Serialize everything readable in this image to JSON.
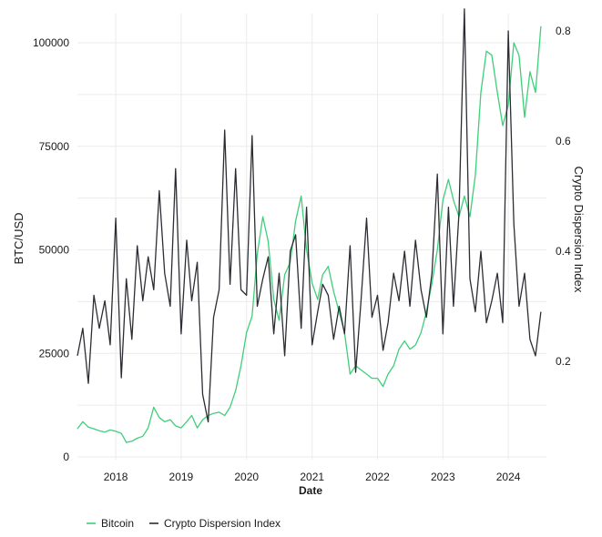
{
  "chart_data": {
    "type": "line",
    "title": "",
    "xlabel": "Date",
    "ylabel_left": "BTC/USD",
    "ylabel_right": "Crypto Dispersion Index",
    "x_ticks": [
      "2018",
      "2019",
      "2020",
      "2021",
      "2022",
      "2023",
      "2024"
    ],
    "x_range": [
      "2017-06-01",
      "2024-08-01"
    ],
    "y_left_ticks": [
      "0",
      "25000",
      "50000",
      "75000",
      "100000"
    ],
    "y_left_range": [
      0,
      100000
    ],
    "y_right_ticks": [
      "0.2",
      "0.4",
      "0.6",
      "0.8"
    ],
    "y_right_range": [
      0.2,
      0.8
    ],
    "grid": true,
    "legend_position": "bottom-left",
    "series": [
      {
        "name": "Bitcoin",
        "axis": "left",
        "color": "#3ecf7a",
        "points": [
          [
            "2017-06-01",
            6800
          ],
          [
            "2017-07-01",
            8500
          ],
          [
            "2017-08-01",
            7200
          ],
          [
            "2017-09-01",
            6800
          ],
          [
            "2017-10-01",
            6300
          ],
          [
            "2017-11-01",
            6000
          ],
          [
            "2017-12-01",
            6500
          ],
          [
            "2018-01-01",
            6200
          ],
          [
            "2018-02-01",
            5700
          ],
          [
            "2018-03-01",
            3500
          ],
          [
            "2018-04-01",
            3800
          ],
          [
            "2018-05-01",
            4500
          ],
          [
            "2018-06-01",
            5000
          ],
          [
            "2018-07-01",
            7000
          ],
          [
            "2018-08-01",
            12000
          ],
          [
            "2018-09-01",
            9500
          ],
          [
            "2018-10-01",
            8500
          ],
          [
            "2018-11-01",
            9000
          ],
          [
            "2018-12-01",
            7500
          ],
          [
            "2019-01-01",
            7000
          ],
          [
            "2019-02-01",
            8500
          ],
          [
            "2019-03-01",
            10000
          ],
          [
            "2019-04-01",
            7000
          ],
          [
            "2019-05-01",
            9000
          ],
          [
            "2019-06-01",
            10000
          ],
          [
            "2019-07-01",
            10500
          ],
          [
            "2019-08-01",
            10800
          ],
          [
            "2019-09-01",
            10000
          ],
          [
            "2019-10-01",
            12000
          ],
          [
            "2019-11-01",
            16000
          ],
          [
            "2019-12-01",
            22000
          ],
          [
            "2020-01-01",
            30000
          ],
          [
            "2020-02-01",
            34000
          ],
          [
            "2020-03-01",
            49000
          ],
          [
            "2020-04-01",
            58000
          ],
          [
            "2020-05-01",
            52000
          ],
          [
            "2020-06-01",
            38000
          ],
          [
            "2020-07-01",
            33000
          ],
          [
            "2020-08-01",
            44000
          ],
          [
            "2020-09-01",
            47000
          ],
          [
            "2020-10-01",
            57000
          ],
          [
            "2020-11-01",
            63000
          ],
          [
            "2020-12-01",
            50000
          ],
          [
            "2021-01-01",
            42000
          ],
          [
            "2021-02-01",
            38000
          ],
          [
            "2021-03-01",
            44000
          ],
          [
            "2021-04-01",
            46000
          ],
          [
            "2021-05-01",
            40000
          ],
          [
            "2021-06-01",
            35000
          ],
          [
            "2021-07-01",
            30000
          ],
          [
            "2021-08-01",
            20000
          ],
          [
            "2021-09-01",
            22000
          ],
          [
            "2021-10-01",
            21000
          ],
          [
            "2021-11-01",
            20000
          ],
          [
            "2021-12-01",
            19000
          ],
          [
            "2022-01-01",
            19000
          ],
          [
            "2022-02-01",
            17000
          ],
          [
            "2022-03-01",
            20000
          ],
          [
            "2022-04-01",
            22000
          ],
          [
            "2022-05-01",
            26000
          ],
          [
            "2022-06-01",
            28000
          ],
          [
            "2022-07-01",
            26000
          ],
          [
            "2022-08-01",
            27000
          ],
          [
            "2022-09-01",
            30000
          ],
          [
            "2022-10-01",
            35000
          ],
          [
            "2022-11-01",
            42000
          ],
          [
            "2022-12-01",
            50000
          ],
          [
            "2023-01-01",
            62000
          ],
          [
            "2023-02-01",
            67000
          ],
          [
            "2023-03-01",
            62000
          ],
          [
            "2023-04-01",
            58000
          ],
          [
            "2023-05-01",
            63000
          ],
          [
            "2023-06-01",
            58000
          ],
          [
            "2023-07-01",
            68000
          ],
          [
            "2023-08-01",
            88000
          ],
          [
            "2023-09-01",
            98000
          ],
          [
            "2023-10-01",
            97000
          ],
          [
            "2023-11-01",
            88000
          ],
          [
            "2023-12-01",
            80000
          ],
          [
            "2024-01-01",
            85000
          ],
          [
            "2024-02-01",
            100000
          ],
          [
            "2024-03-01",
            97000
          ],
          [
            "2024-04-01",
            82000
          ],
          [
            "2024-05-01",
            93000
          ],
          [
            "2024-06-01",
            88000
          ],
          [
            "2024-07-01",
            104000
          ]
        ]
      },
      {
        "name": "Crypto Dispersion Index",
        "axis": "right",
        "color": "#2b2d33",
        "points": [
          [
            "2017-06-01",
            0.21
          ],
          [
            "2017-07-01",
            0.26
          ],
          [
            "2017-08-01",
            0.16
          ],
          [
            "2017-09-01",
            0.32
          ],
          [
            "2017-10-01",
            0.26
          ],
          [
            "2017-11-01",
            0.31
          ],
          [
            "2017-12-01",
            0.23
          ],
          [
            "2018-01-01",
            0.46
          ],
          [
            "2018-02-01",
            0.17
          ],
          [
            "2018-03-01",
            0.35
          ],
          [
            "2018-04-01",
            0.24
          ],
          [
            "2018-05-01",
            0.41
          ],
          [
            "2018-06-01",
            0.31
          ],
          [
            "2018-07-01",
            0.39
          ],
          [
            "2018-08-01",
            0.33
          ],
          [
            "2018-09-01",
            0.51
          ],
          [
            "2018-10-01",
            0.36
          ],
          [
            "2018-11-01",
            0.3
          ],
          [
            "2018-12-01",
            0.55
          ],
          [
            "2019-01-01",
            0.25
          ],
          [
            "2019-02-01",
            0.42
          ],
          [
            "2019-03-01",
            0.31
          ],
          [
            "2019-04-01",
            0.38
          ],
          [
            "2019-05-01",
            0.14
          ],
          [
            "2019-06-01",
            0.09
          ],
          [
            "2019-07-01",
            0.28
          ],
          [
            "2019-08-01",
            0.33
          ],
          [
            "2019-09-01",
            0.62
          ],
          [
            "2019-10-01",
            0.34
          ],
          [
            "2019-11-01",
            0.55
          ],
          [
            "2019-12-01",
            0.33
          ],
          [
            "2020-01-01",
            0.32
          ],
          [
            "2020-02-01",
            0.61
          ],
          [
            "2020-03-01",
            0.3
          ],
          [
            "2020-04-01",
            0.35
          ],
          [
            "2020-05-01",
            0.39
          ],
          [
            "2020-06-01",
            0.25
          ],
          [
            "2020-07-01",
            0.36
          ],
          [
            "2020-08-01",
            0.21
          ],
          [
            "2020-09-01",
            0.4
          ],
          [
            "2020-10-01",
            0.43
          ],
          [
            "2020-11-01",
            0.26
          ],
          [
            "2020-12-01",
            0.48
          ],
          [
            "2021-01-01",
            0.23
          ],
          [
            "2021-02-01",
            0.29
          ],
          [
            "2021-03-01",
            0.34
          ],
          [
            "2021-04-01",
            0.32
          ],
          [
            "2021-05-01",
            0.24
          ],
          [
            "2021-06-01",
            0.3
          ],
          [
            "2021-07-01",
            0.25
          ],
          [
            "2021-08-01",
            0.41
          ],
          [
            "2021-09-01",
            0.18
          ],
          [
            "2021-10-01",
            0.31
          ],
          [
            "2021-11-01",
            0.46
          ],
          [
            "2021-12-01",
            0.28
          ],
          [
            "2022-01-01",
            0.32
          ],
          [
            "2022-02-01",
            0.22
          ],
          [
            "2022-03-01",
            0.27
          ],
          [
            "2022-04-01",
            0.36
          ],
          [
            "2022-05-01",
            0.31
          ],
          [
            "2022-06-01",
            0.4
          ],
          [
            "2022-07-01",
            0.3
          ],
          [
            "2022-08-01",
            0.42
          ],
          [
            "2022-09-01",
            0.33
          ],
          [
            "2022-10-01",
            0.28
          ],
          [
            "2022-11-01",
            0.36
          ],
          [
            "2022-12-01",
            0.54
          ],
          [
            "2023-01-01",
            0.25
          ],
          [
            "2023-02-01",
            0.48
          ],
          [
            "2023-03-01",
            0.3
          ],
          [
            "2023-04-01",
            0.47
          ],
          [
            "2023-05-01",
            0.84
          ],
          [
            "2023-06-01",
            0.35
          ],
          [
            "2023-07-01",
            0.29
          ],
          [
            "2023-08-01",
            0.4
          ],
          [
            "2023-09-01",
            0.27
          ],
          [
            "2023-10-01",
            0.31
          ],
          [
            "2023-11-01",
            0.36
          ],
          [
            "2023-12-01",
            0.27
          ],
          [
            "2024-01-01",
            0.8
          ],
          [
            "2024-02-01",
            0.45
          ],
          [
            "2024-03-01",
            0.3
          ],
          [
            "2024-04-01",
            0.36
          ],
          [
            "2024-05-01",
            0.24
          ],
          [
            "2024-06-01",
            0.21
          ],
          [
            "2024-07-01",
            0.29
          ]
        ]
      }
    ]
  }
}
